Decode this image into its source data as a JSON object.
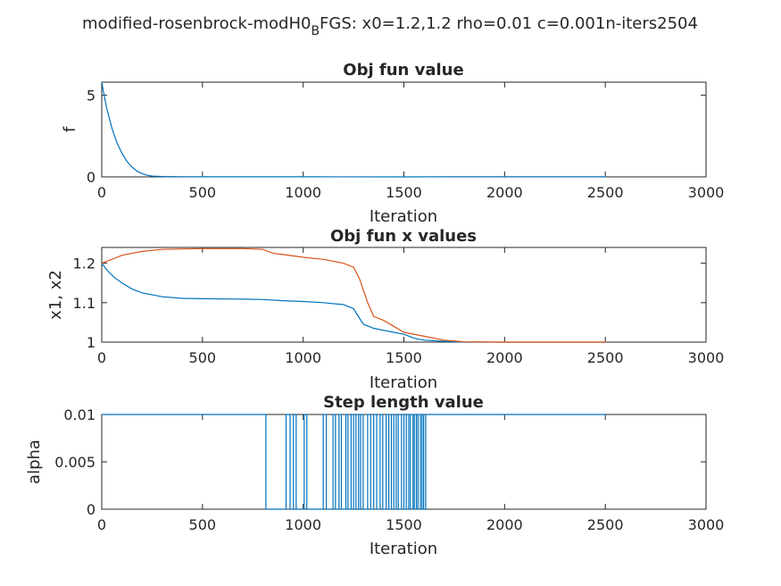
{
  "figure": {
    "suptitle_main": "modified-rosenbrock-modH0",
    "suptitle_sub": "B",
    "suptitle_rest": "FGS: x0=1.2,1.2 rho=0.01 c=0.001n-iters2504"
  },
  "colors": {
    "series1": "#0072BD",
    "series2": "#D95319",
    "axes": "#262626"
  },
  "chart_data": [
    {
      "type": "line",
      "title": "Obj fun value",
      "xlabel": "Iteration",
      "ylabel": "f",
      "xlim": [
        0,
        3000
      ],
      "ylim": [
        0,
        5.8
      ],
      "xticks": [
        "0",
        "500",
        "1000",
        "1500",
        "2000",
        "2500",
        "3000"
      ],
      "yticks": [
        {
          "value": 0,
          "label": "0"
        },
        {
          "value": 5,
          "label": "5"
        }
      ],
      "series": [
        {
          "x": [
            0,
            10,
            25,
            50,
            75,
            100,
            125,
            150,
            175,
            200,
            225,
            250,
            300,
            400,
            600,
            1000,
            1500,
            1800,
            2000,
            2300,
            2504
          ],
          "y": [
            5.8,
            5.1,
            4.2,
            3.0,
            2.1,
            1.45,
            0.95,
            0.6,
            0.35,
            0.2,
            0.1,
            0.05,
            0.02,
            0.01,
            0.005,
            0.003,
            0.002,
            0.01,
            0.01,
            0.01,
            0.01
          ]
        }
      ]
    },
    {
      "type": "line",
      "title": "Obj fun x values",
      "xlabel": "Iteration",
      "ylabel": "x1, x2",
      "xlim": [
        0,
        3000
      ],
      "ylim": [
        1,
        1.24
      ],
      "xticks": [
        "0",
        "500",
        "1000",
        "1500",
        "2000",
        "2500",
        "3000"
      ],
      "yticks": [
        {
          "value": 1,
          "label": "1"
        },
        {
          "value": 1.1,
          "label": "1.1"
        },
        {
          "value": 1.2,
          "label": "1.2"
        }
      ],
      "series": [
        {
          "x": [
            0,
            30,
            60,
            100,
            150,
            200,
            300,
            400,
            500,
            700,
            800,
            900,
            1000,
            1100,
            1200,
            1250,
            1280,
            1300,
            1350,
            1400,
            1450,
            1500,
            1550,
            1600,
            1700,
            1800,
            2000,
            2300,
            2504
          ],
          "y": [
            1.2,
            1.18,
            1.165,
            1.15,
            1.135,
            1.125,
            1.115,
            1.111,
            1.11,
            1.109,
            1.108,
            1.105,
            1.103,
            1.1,
            1.095,
            1.085,
            1.06,
            1.045,
            1.035,
            1.03,
            1.025,
            1.02,
            1.01,
            1.005,
            1.002,
            1.0,
            1.0,
            1.0,
            1.0
          ]
        },
        {
          "x": [
            0,
            50,
            100,
            200,
            300,
            500,
            700,
            800,
            850,
            900,
            1000,
            1100,
            1200,
            1250,
            1280,
            1300,
            1320,
            1350,
            1400,
            1450,
            1500,
            1600,
            1700,
            1800,
            2000,
            2300,
            2504
          ],
          "y": [
            1.2,
            1.21,
            1.22,
            1.23,
            1.235,
            1.237,
            1.237,
            1.235,
            1.225,
            1.222,
            1.215,
            1.21,
            1.2,
            1.19,
            1.16,
            1.13,
            1.1,
            1.065,
            1.055,
            1.04,
            1.025,
            1.015,
            1.005,
            1.001,
            1.0,
            1.0,
            1.0
          ]
        }
      ]
    },
    {
      "type": "line",
      "title": "Step length value",
      "xlabel": "Iteration",
      "ylabel": "alpha",
      "xlim": [
        0,
        3000
      ],
      "ylim": [
        0,
        0.01
      ],
      "xticks": [
        "0",
        "500",
        "1000",
        "1500",
        "2000",
        "2500",
        "3000"
      ],
      "yticks": [
        {
          "value": 0,
          "label": "0"
        },
        {
          "value": 0.005,
          "label": "0.005"
        },
        {
          "value": 0.01,
          "label": "0.01"
        }
      ],
      "high_value": 0.01,
      "low_value": 0,
      "low_intervals": [
        [
          815,
          915
        ],
        [
          935,
          952
        ],
        [
          965,
          1005
        ],
        [
          1018,
          1100
        ],
        [
          1115,
          1148
        ],
        [
          1160,
          1178
        ],
        [
          1190,
          1212
        ],
        [
          1222,
          1238
        ],
        [
          1250,
          1262
        ],
        [
          1275,
          1285
        ],
        [
          1298,
          1320
        ],
        [
          1335,
          1350
        ],
        [
          1365,
          1382
        ],
        [
          1395,
          1412
        ],
        [
          1425,
          1438
        ],
        [
          1450,
          1462
        ],
        [
          1472,
          1488
        ],
        [
          1500,
          1512
        ],
        [
          1524,
          1532
        ],
        [
          1545,
          1552
        ],
        [
          1562,
          1570
        ],
        [
          1582,
          1590
        ],
        [
          1598,
          1608
        ]
      ],
      "end_iteration": 2504
    }
  ]
}
